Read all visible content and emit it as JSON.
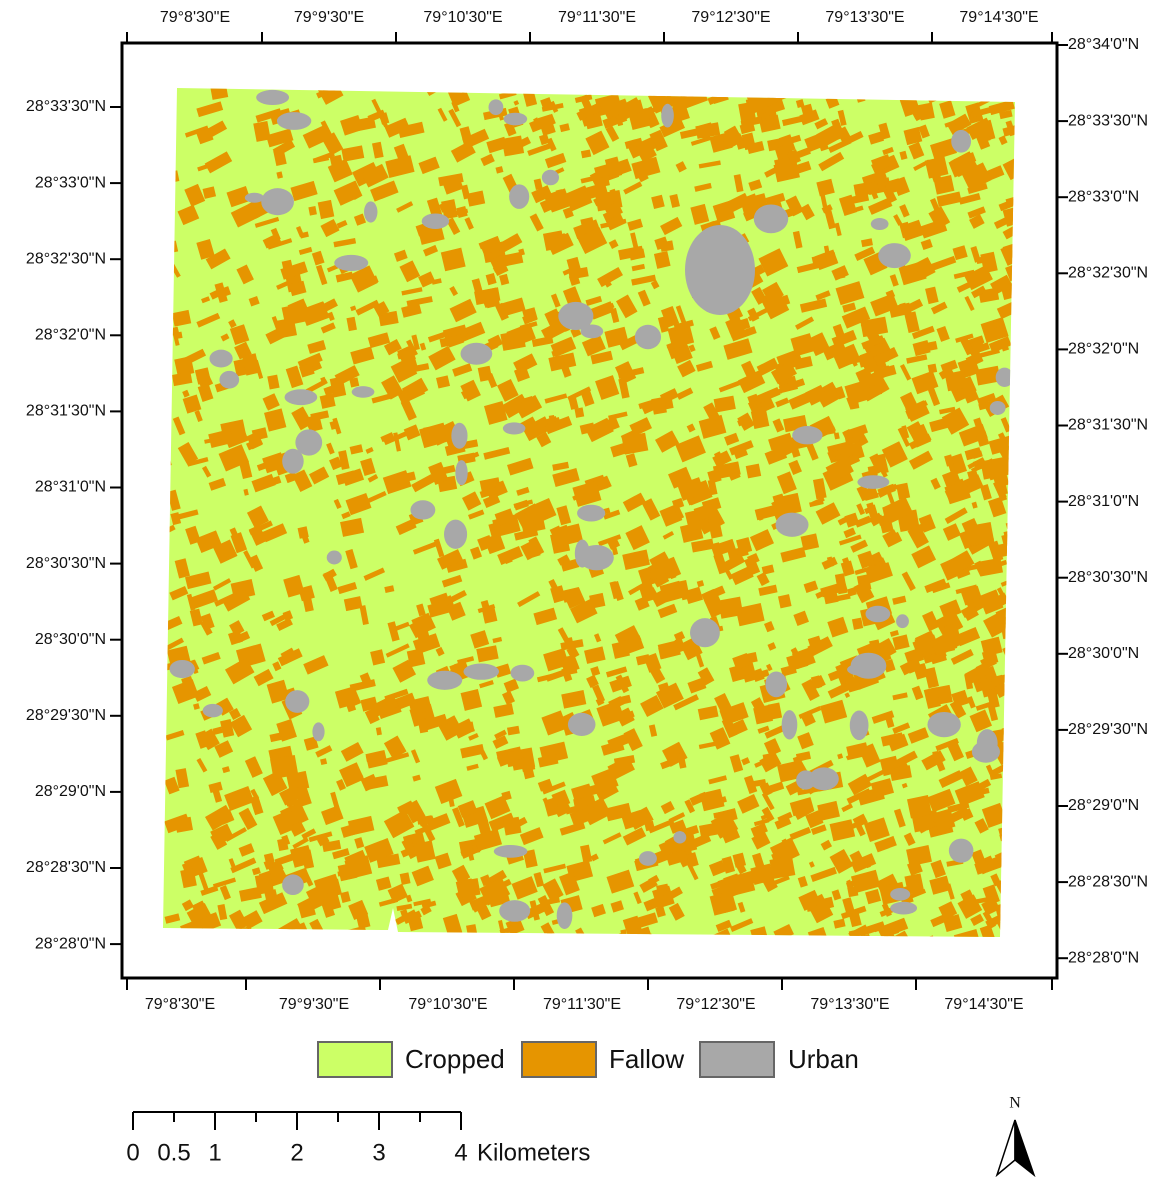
{
  "map": {
    "top_labels": [
      "79°8'30\"E",
      "79°9'30\"E",
      "79°10'30\"E",
      "79°11'30\"E",
      "79°12'30\"E",
      "79°13'30\"E",
      "79°14'30\"E"
    ],
    "bottom_labels": [
      "79°8'30\"E",
      "79°9'30\"E",
      "79°10'30\"E",
      "79°11'30\"E",
      "79°12'30\"E",
      "79°13'30\"E",
      "79°14'30\"E"
    ],
    "left_labels": [
      "28°33'30\"N",
      "28°33'0\"N",
      "28°32'30\"N",
      "28°32'0\"N",
      "28°31'30\"N",
      "28°31'0\"N",
      "28°30'30\"N",
      "28°30'0\"N",
      "28°29'30\"N",
      "28°29'0\"N",
      "28°28'30\"N",
      "28°28'0\"N"
    ],
    "right_labels": [
      "28°34'0\"N",
      "28°33'30\"N",
      "28°33'0\"N",
      "28°32'30\"N",
      "28°32'0\"N",
      "28°31'30\"N",
      "28°31'0\"N",
      "28°30'30\"N",
      "28°30'0\"N",
      "28°29'30\"N",
      "28°29'0\"N",
      "28°28'30\"N",
      "28°28'0\"N"
    ]
  },
  "legend": [
    {
      "label": "Cropped",
      "color": "#ccff66"
    },
    {
      "label": "Fallow",
      "color": "#e69500"
    },
    {
      "label": "Urban",
      "color": "#a8a8a8"
    }
  ],
  "scale_bar": {
    "labels": [
      0,
      0.5,
      1,
      2,
      3,
      4
    ],
    "unit": "Kilometers"
  },
  "north_arrow": "N"
}
